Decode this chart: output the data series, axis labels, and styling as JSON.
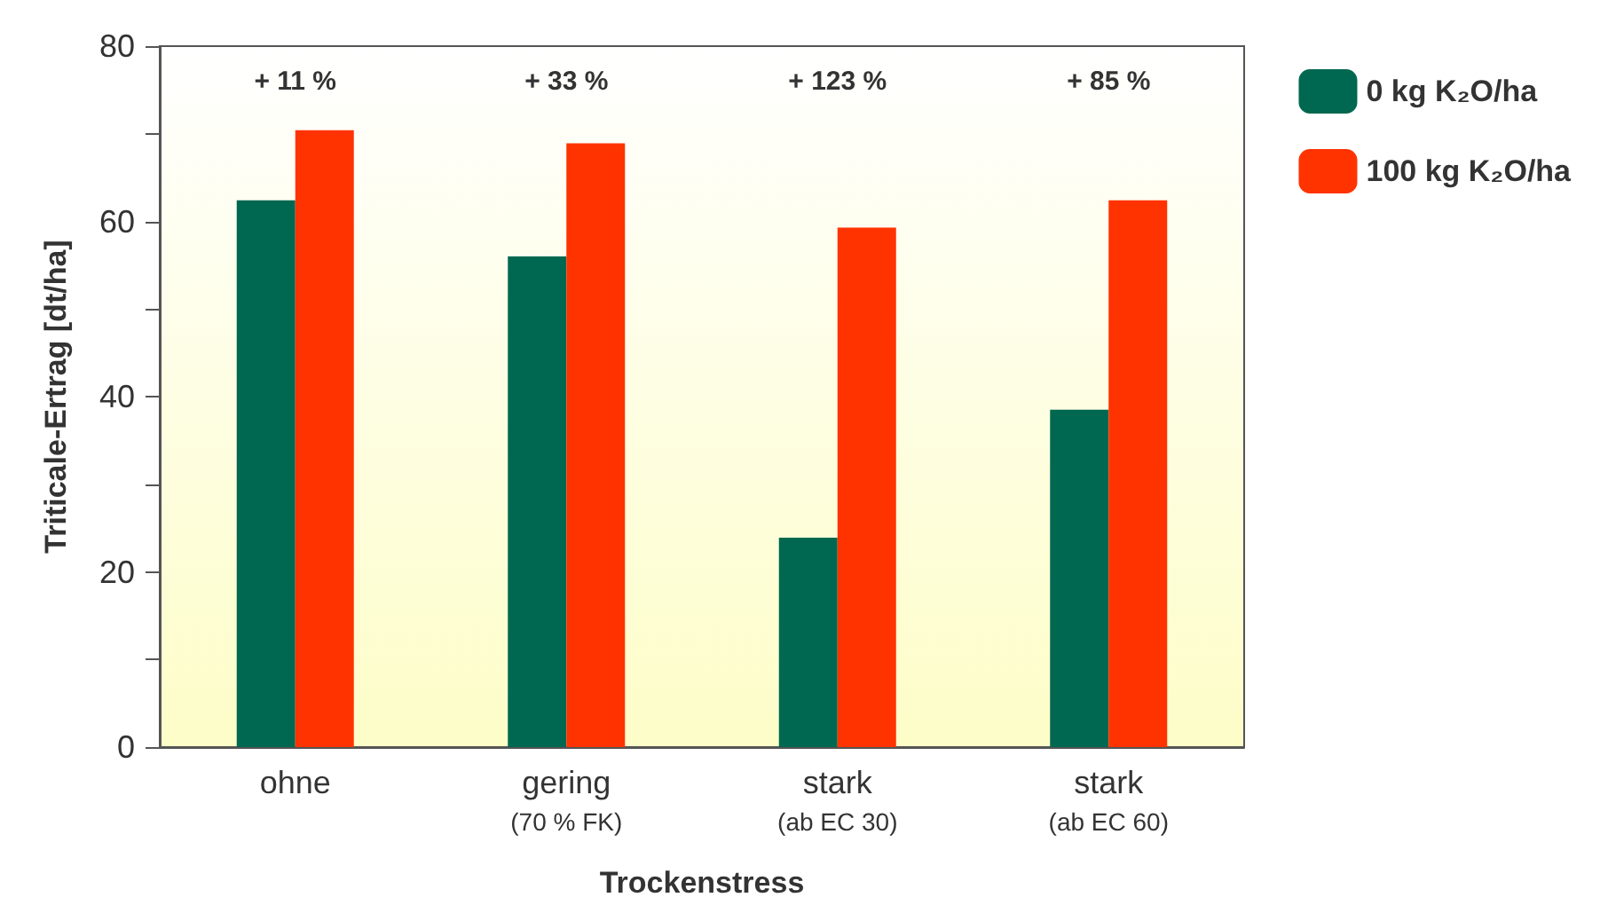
{
  "chart_data": {
    "type": "bar",
    "ylabel": "Triticale-Ertrag [dt/ha]",
    "xlabel": "Trockenstress",
    "categories": [
      "ohne",
      "gering\n(70 % FK)",
      "stark\n(ab EC 30)",
      "stark\n(ab EC 60)"
    ],
    "series": [
      {
        "name": "0 kg K₂O/ha",
        "color": "#006850",
        "values": [
          62.4,
          56.0,
          23.9,
          38.5
        ]
      },
      {
        "name": "100 kg K₂O/ha",
        "color": "#ff3300",
        "values": [
          70.4,
          68.9,
          59.3,
          62.4
        ]
      }
    ],
    "ylim": [
      0,
      80
    ],
    "yticks": [
      0,
      {
        "value": 10,
        "label": null
      },
      20,
      {
        "value": 30,
        "label": null
      },
      40,
      {
        "value": 50,
        "label": null
      },
      60,
      {
        "value": 70,
        "label": null
      },
      80
    ],
    "annotations": [
      "+ 11 %",
      "+ 33 %",
      "+ 123 %",
      "+ 85 %"
    ],
    "grid": false,
    "legend": "top right"
  }
}
